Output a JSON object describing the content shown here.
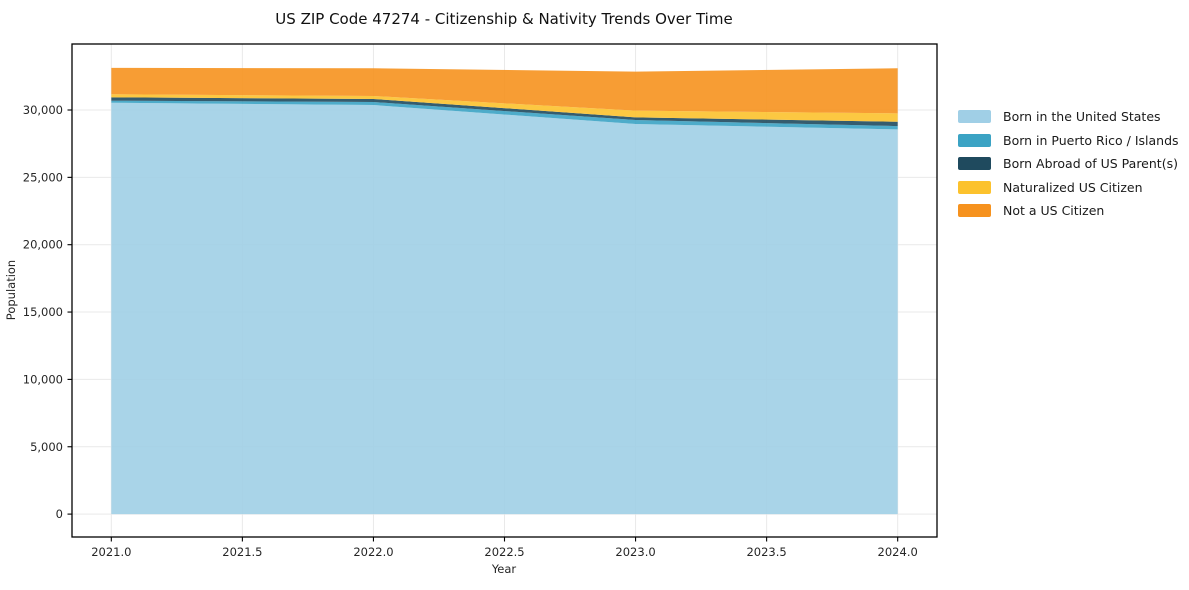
{
  "chart_data": {
    "type": "area",
    "stacked": true,
    "title": "US ZIP Code 47274 - Citizenship & Nativity Trends Over Time",
    "xlabel": "Year",
    "ylabel": "Population",
    "x": [
      2021,
      2022,
      2023,
      2024
    ],
    "series": [
      {
        "name": "Born in the United States",
        "color": "#A0CFE6",
        "values": [
          30540,
          30370,
          28960,
          28560
        ]
      },
      {
        "name": "Born in Puerto Rico / Islands",
        "color": "#3BA3C4",
        "values": [
          150,
          225,
          295,
          245
        ]
      },
      {
        "name": "Born Abroad of US Parent(s)",
        "color": "#1F4A5E",
        "values": [
          250,
          225,
          200,
          320
        ]
      },
      {
        "name": "Naturalized US Citizen",
        "color": "#FCC22D",
        "values": [
          230,
          220,
          495,
          625
        ]
      },
      {
        "name": "Not a US Citizen",
        "color": "#F6921E",
        "values": [
          1960,
          2060,
          2900,
          3345
        ]
      }
    ],
    "xticks": [
      2021.0,
      2021.5,
      2022.0,
      2022.5,
      2023.0,
      2023.5,
      2024.0
    ],
    "xtick_labels": [
      "2021.0",
      "2021.5",
      "2022.0",
      "2022.5",
      "2023.0",
      "2023.5",
      "2024.0"
    ],
    "yticks": [
      0,
      5000,
      10000,
      15000,
      20000,
      25000,
      30000
    ],
    "ytick_labels": [
      "0",
      "5,000",
      "10,000",
      "15,000",
      "20,000",
      "25,000",
      "30,000"
    ],
    "xlim": [
      2020.85,
      2024.15
    ],
    "ylim": [
      -1700,
      34900
    ],
    "grid": true,
    "grid_color": "#e9e9e9",
    "frame_color": "#000000",
    "fill_alpha": 0.9,
    "legend_position": "right"
  }
}
